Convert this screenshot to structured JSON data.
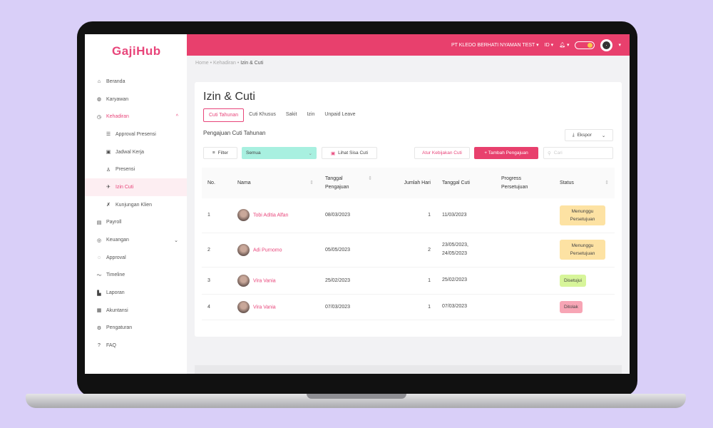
{
  "app": {
    "logo": "GajiHub",
    "company": "PT KLEDO BERHATI NYAMAN TEST",
    "lang": "ID"
  },
  "sidebar": {
    "items": [
      {
        "label": "Beranda",
        "icon": "home-icon",
        "glyph": "⌂"
      },
      {
        "label": "Karyawan",
        "icon": "users-icon",
        "glyph": "◍"
      },
      {
        "label": "Kehadiran",
        "icon": "clock-icon",
        "glyph": "◷",
        "active": true
      },
      {
        "label": "Approval Presensi",
        "icon": "sliders-icon",
        "glyph": "☰",
        "sub": true
      },
      {
        "label": "Jadwal Kerja",
        "icon": "calendar-icon",
        "glyph": "▣",
        "sub": true
      },
      {
        "label": "Presensi",
        "icon": "user-check-icon",
        "glyph": "♙",
        "sub": true
      },
      {
        "label": "Izin Cuti",
        "icon": "plane-icon",
        "glyph": "✈",
        "sub": true,
        "selected": true
      },
      {
        "label": "Kunjungan Klien",
        "icon": "walk-icon",
        "glyph": "✗",
        "sub": true
      },
      {
        "label": "Payroll",
        "icon": "money-icon",
        "glyph": "▤"
      },
      {
        "label": "Keuangan",
        "icon": "finance-icon",
        "glyph": "◎"
      },
      {
        "label": "Approval",
        "icon": "approval-icon",
        "glyph": "◌"
      },
      {
        "label": "Timeline",
        "icon": "timeline-icon",
        "glyph": "〜"
      },
      {
        "label": "Laporan",
        "icon": "chart-icon",
        "glyph": "▙"
      },
      {
        "label": "Akuntansi",
        "icon": "book-icon",
        "glyph": "▦"
      },
      {
        "label": "Pengaturan",
        "icon": "gear-icon",
        "glyph": "⚙"
      },
      {
        "label": "FAQ",
        "icon": "question-icon",
        "glyph": "?"
      }
    ]
  },
  "breadcrumb": [
    "Home",
    "Kehadiran",
    "Izin & Cuti"
  ],
  "page": {
    "title": "Izin & Cuti",
    "tabs": [
      "Cuti Tahunan",
      "Cuti Khusus",
      "Sakit",
      "Izin",
      "Unpaid Leave"
    ],
    "section": "Pengajuan Cuti Tahunan",
    "export": "Ekspor",
    "filter": "Filter",
    "filter_value": "Semua",
    "sisa": "Lihat Sisa Cuti",
    "atur": "Atur Kebijakan Cuti",
    "tambah": "+ Tambah Pengajuan",
    "search_placeholder": "Cari"
  },
  "table": {
    "headers": [
      "No.",
      "Nama",
      "Tanggal Pengajuan",
      "Jumlah Hari",
      "Tanggal Cuti",
      "Progress Persetujuan",
      "Status"
    ],
    "rows": [
      {
        "no": "1",
        "name": "Tobi Aditia Alfan",
        "submitted": "08/03/2023",
        "days": "1",
        "dates": "11/03/2023",
        "status": "Menunggu Persetujuan",
        "status_color": "#fde2a3"
      },
      {
        "no": "2",
        "name": "Adi Purnomo",
        "submitted": "05/05/2023",
        "days": "2",
        "dates": "23/05/2023, 24/05/2023",
        "status": "Menunggu Persetujuan",
        "status_color": "#fde2a3"
      },
      {
        "no": "3",
        "name": "Vira Vania",
        "submitted": "25/02/2023",
        "days": "1",
        "dates": "25/02/2023",
        "status": "Disetujui",
        "status_color": "#d7f59a"
      },
      {
        "no": "4",
        "name": "Vira Vania",
        "submitted": "07/03/2023",
        "days": "1",
        "dates": "07/03/2023",
        "status": "Ditolak",
        "status_color": "#f7a5b5"
      }
    ]
  },
  "colors": {
    "brand": "#e8406d"
  }
}
